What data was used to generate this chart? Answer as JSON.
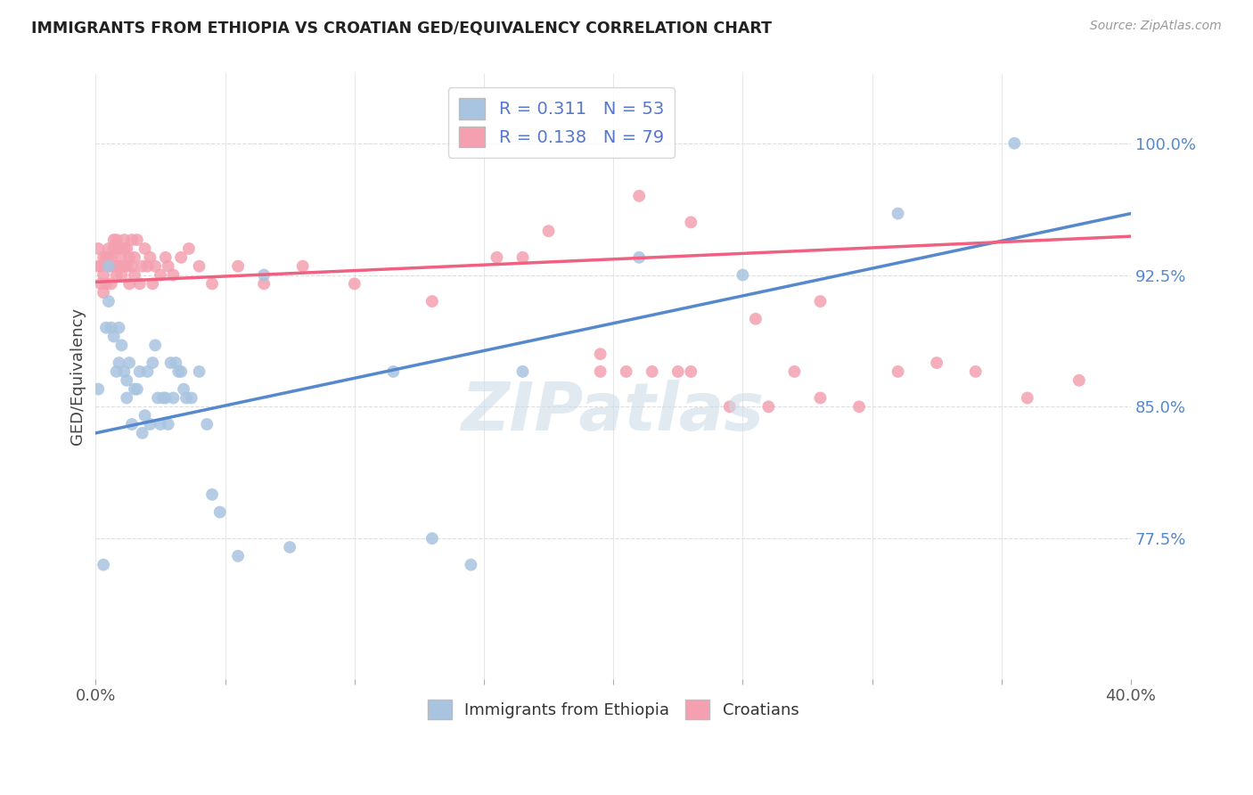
{
  "title": "IMMIGRANTS FROM ETHIOPIA VS CROATIAN GED/EQUIVALENCY CORRELATION CHART",
  "source": "Source: ZipAtlas.com",
  "ylabel": "GED/Equivalency",
  "ytick_labels": [
    "77.5%",
    "85.0%",
    "92.5%",
    "100.0%"
  ],
  "ytick_values": [
    0.775,
    0.85,
    0.925,
    1.0
  ],
  "xlim": [
    0.0,
    0.4
  ],
  "ylim": [
    0.695,
    1.04
  ],
  "ethiopia_color": "#a8c4e0",
  "croatia_color": "#f4a0b0",
  "ethiopia_line_color": "#5588cc",
  "croatia_line_color": "#f06080",
  "watermark": "ZIPatlas",
  "watermark_color": "#cddce8",
  "eth_line_x": [
    0.0,
    0.4
  ],
  "eth_line_y": [
    0.835,
    0.96
  ],
  "cro_line_x": [
    0.0,
    0.4
  ],
  "cro_line_y": [
    0.921,
    0.947
  ],
  "ethiopia_x": [
    0.001,
    0.003,
    0.004,
    0.005,
    0.005,
    0.006,
    0.007,
    0.008,
    0.009,
    0.009,
    0.01,
    0.011,
    0.012,
    0.012,
    0.013,
    0.014,
    0.015,
    0.016,
    0.017,
    0.018,
    0.019,
    0.02,
    0.021,
    0.022,
    0.023,
    0.024,
    0.025,
    0.026,
    0.027,
    0.028,
    0.029,
    0.03,
    0.031,
    0.032,
    0.033,
    0.034,
    0.035,
    0.037,
    0.04,
    0.043,
    0.045,
    0.048,
    0.055,
    0.065,
    0.075,
    0.115,
    0.13,
    0.145,
    0.165,
    0.21,
    0.25,
    0.31,
    0.355
  ],
  "ethiopia_y": [
    0.86,
    0.76,
    0.895,
    0.93,
    0.91,
    0.895,
    0.89,
    0.87,
    0.875,
    0.895,
    0.885,
    0.87,
    0.855,
    0.865,
    0.875,
    0.84,
    0.86,
    0.86,
    0.87,
    0.835,
    0.845,
    0.87,
    0.84,
    0.875,
    0.885,
    0.855,
    0.84,
    0.855,
    0.855,
    0.84,
    0.875,
    0.855,
    0.875,
    0.87,
    0.87,
    0.86,
    0.855,
    0.855,
    0.87,
    0.84,
    0.8,
    0.79,
    0.765,
    0.925,
    0.77,
    0.87,
    0.775,
    0.76,
    0.87,
    0.935,
    0.925,
    0.96,
    1.0
  ],
  "croatia_x": [
    0.001,
    0.001,
    0.002,
    0.002,
    0.003,
    0.003,
    0.003,
    0.004,
    0.004,
    0.005,
    0.005,
    0.005,
    0.006,
    0.006,
    0.007,
    0.007,
    0.007,
    0.008,
    0.008,
    0.008,
    0.009,
    0.009,
    0.01,
    0.01,
    0.011,
    0.011,
    0.011,
    0.012,
    0.012,
    0.013,
    0.013,
    0.014,
    0.014,
    0.015,
    0.015,
    0.016,
    0.017,
    0.018,
    0.019,
    0.02,
    0.021,
    0.022,
    0.023,
    0.025,
    0.027,
    0.028,
    0.03,
    0.033,
    0.036,
    0.04,
    0.045,
    0.055,
    0.065,
    0.08,
    0.1,
    0.13,
    0.165,
    0.195,
    0.23,
    0.27,
    0.155,
    0.175,
    0.21,
    0.23,
    0.255,
    0.28,
    0.195,
    0.205,
    0.215,
    0.225,
    0.245,
    0.26,
    0.28,
    0.295,
    0.31,
    0.325,
    0.34,
    0.36,
    0.38
  ],
  "croatia_y": [
    0.93,
    0.94,
    0.92,
    0.93,
    0.915,
    0.925,
    0.935,
    0.92,
    0.935,
    0.94,
    0.93,
    0.935,
    0.92,
    0.935,
    0.945,
    0.93,
    0.94,
    0.93,
    0.945,
    0.925,
    0.94,
    0.93,
    0.935,
    0.925,
    0.94,
    0.945,
    0.93,
    0.93,
    0.94,
    0.92,
    0.935,
    0.93,
    0.945,
    0.925,
    0.935,
    0.945,
    0.92,
    0.93,
    0.94,
    0.93,
    0.935,
    0.92,
    0.93,
    0.925,
    0.935,
    0.93,
    0.925,
    0.935,
    0.94,
    0.93,
    0.92,
    0.93,
    0.92,
    0.93,
    0.92,
    0.91,
    0.935,
    0.88,
    0.87,
    0.87,
    0.935,
    0.95,
    0.97,
    0.955,
    0.9,
    0.91,
    0.87,
    0.87,
    0.87,
    0.87,
    0.85,
    0.85,
    0.855,
    0.85,
    0.87,
    0.875,
    0.87,
    0.855,
    0.865
  ]
}
